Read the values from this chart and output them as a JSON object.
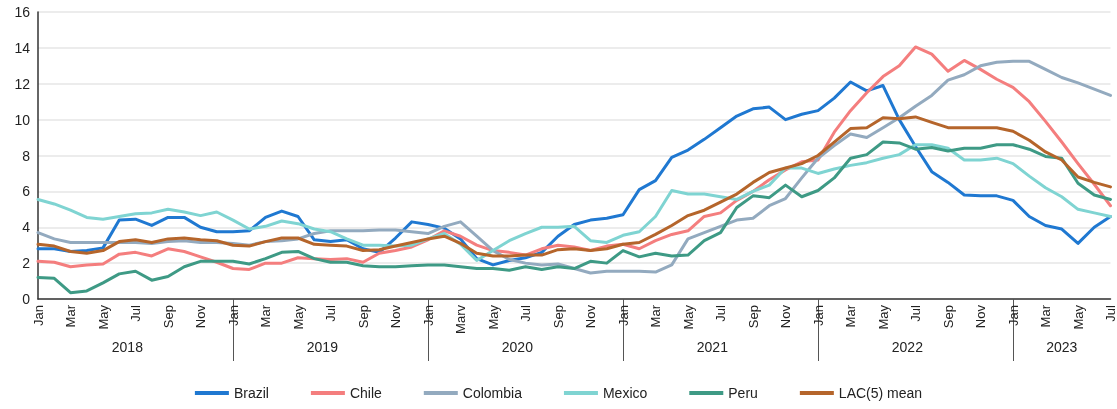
{
  "chart_data": {
    "type": "line",
    "categories": [
      "Jan",
      null,
      "Mar",
      null,
      "May",
      null,
      "Jul",
      null,
      "Sep",
      null,
      "Nov",
      null,
      "Jan",
      null,
      "Mar",
      null,
      "May",
      null,
      "Jul",
      null,
      "Sep",
      null,
      "Nov",
      null,
      "Jan",
      null,
      "Marv",
      null,
      "May",
      null,
      "Jul",
      null,
      "Sep",
      null,
      "Nov",
      null,
      "Jan",
      null,
      "Mar",
      null,
      "May",
      null,
      "Jul",
      null,
      "Sep",
      null,
      "Nov",
      null,
      "Jan",
      null,
      "Mar",
      null,
      "May",
      null,
      "Jul",
      null,
      "Sep",
      null,
      "Nov",
      null,
      "Jan",
      null,
      "Mar",
      null,
      "May",
      null,
      "Jul"
    ],
    "series": [
      {
        "name": "Brazil",
        "color": "#1f78d1",
        "values": [
          2.8,
          2.8,
          2.65,
          2.7,
          2.85,
          4.4,
          4.45,
          4.1,
          4.55,
          4.55,
          4.0,
          3.75,
          3.75,
          3.8,
          4.55,
          4.9,
          4.6,
          3.3,
          3.2,
          3.3,
          2.8,
          2.6,
          3.4,
          4.3,
          4.15,
          3.95,
          3.35,
          2.25,
          1.9,
          2.15,
          2.3,
          2.6,
          3.5,
          4.15,
          4.4,
          4.5,
          4.7,
          6.1,
          6.6,
          7.9,
          8.3,
          8.9,
          9.55,
          10.2,
          10.6,
          10.7,
          10.0,
          10.3,
          10.5,
          11.2,
          12.1,
          11.6,
          11.9,
          10.0,
          8.5,
          7.1,
          6.5,
          5.8,
          5.75,
          5.75,
          5.5,
          4.6,
          4.1,
          3.9,
          3.1,
          4.0,
          4.6
        ]
      },
      {
        "name": "Chile",
        "color": "#f47e7e",
        "values": [
          2.1,
          2.05,
          1.8,
          1.9,
          1.95,
          2.5,
          2.6,
          2.4,
          2.8,
          2.65,
          2.35,
          2.05,
          1.7,
          1.65,
          2.0,
          2.0,
          2.3,
          2.25,
          2.2,
          2.25,
          2.05,
          2.55,
          2.7,
          2.9,
          3.3,
          3.8,
          3.5,
          3.0,
          2.7,
          2.6,
          2.45,
          2.8,
          3.0,
          2.9,
          2.7,
          2.95,
          3.05,
          2.8,
          3.25,
          3.6,
          3.8,
          4.6,
          4.8,
          5.5,
          6.0,
          6.65,
          7.2,
          7.65,
          7.75,
          9.3,
          10.5,
          11.5,
          12.4,
          13.0,
          14.05,
          13.65,
          12.7,
          13.3,
          12.8,
          12.25,
          11.8,
          11.0,
          9.9,
          8.75,
          7.55,
          6.4,
          5.2
        ]
      },
      {
        "name": "Colombia",
        "color": "#93aabf",
        "values": [
          3.7,
          3.35,
          3.15,
          3.15,
          3.15,
          3.15,
          3.15,
          3.1,
          3.2,
          3.25,
          3.15,
          3.15,
          3.1,
          3.0,
          3.2,
          3.25,
          3.35,
          3.65,
          3.8,
          3.8,
          3.8,
          3.85,
          3.85,
          3.75,
          3.65,
          4.05,
          4.3,
          3.5,
          2.7,
          2.2,
          2.0,
          1.9,
          1.95,
          1.7,
          1.45,
          1.55,
          1.55,
          1.55,
          1.5,
          1.9,
          3.35,
          3.7,
          4.05,
          4.4,
          4.5,
          5.2,
          5.6,
          6.75,
          7.85,
          8.55,
          9.2,
          9.0,
          9.55,
          10.1,
          10.75,
          11.35,
          12.2,
          12.5,
          13.0,
          13.2,
          13.25,
          13.25,
          12.8,
          12.35,
          12.05,
          11.7,
          11.35
        ]
      },
      {
        "name": "Mexico",
        "color": "#7fd4d2",
        "values": [
          5.55,
          5.3,
          4.95,
          4.55,
          4.45,
          4.6,
          4.75,
          4.8,
          5.0,
          4.85,
          4.65,
          4.85,
          4.4,
          3.9,
          4.05,
          4.35,
          4.2,
          3.9,
          3.75,
          3.35,
          3.0,
          3.0,
          2.95,
          3.0,
          3.35,
          3.65,
          3.05,
          2.15,
          2.7,
          3.25,
          3.65,
          4.0,
          4.0,
          4.05,
          3.25,
          3.15,
          3.55,
          3.75,
          4.6,
          6.05,
          5.85,
          5.85,
          5.7,
          5.55,
          6.0,
          6.35,
          7.3,
          7.3,
          7.0,
          7.25,
          7.45,
          7.6,
          7.85,
          8.05,
          8.6,
          8.6,
          8.4,
          7.75,
          7.75,
          7.85,
          7.55,
          6.85,
          6.2,
          5.7,
          5.0,
          4.8,
          4.6
        ]
      },
      {
        "name": "Peru",
        "color": "#3e9a85",
        "values": [
          1.2,
          1.15,
          0.35,
          0.45,
          0.9,
          1.4,
          1.55,
          1.05,
          1.25,
          1.8,
          2.1,
          2.1,
          2.1,
          1.95,
          2.25,
          2.6,
          2.65,
          2.25,
          2.05,
          2.05,
          1.85,
          1.8,
          1.8,
          1.85,
          1.9,
          1.9,
          1.8,
          1.7,
          1.7,
          1.6,
          1.8,
          1.65,
          1.8,
          1.7,
          2.1,
          2.0,
          2.7,
          2.35,
          2.55,
          2.4,
          2.45,
          3.25,
          3.7,
          5.1,
          5.75,
          5.65,
          6.35,
          5.7,
          6.05,
          6.75,
          7.85,
          8.05,
          8.75,
          8.7,
          8.35,
          8.45,
          8.25,
          8.4,
          8.4,
          8.6,
          8.6,
          8.35,
          7.95,
          7.85,
          6.45,
          5.8,
          5.55
        ]
      },
      {
        "name": "LAC(5) mean",
        "color": "#b5652b",
        "values": [
          3.05,
          2.95,
          2.65,
          2.55,
          2.7,
          3.2,
          3.3,
          3.15,
          3.35,
          3.4,
          3.3,
          3.25,
          3.0,
          2.95,
          3.2,
          3.4,
          3.4,
          3.05,
          3.0,
          2.95,
          2.7,
          2.75,
          2.95,
          3.15,
          3.35,
          3.5,
          3.1,
          2.55,
          2.4,
          2.4,
          2.45,
          2.45,
          2.75,
          2.8,
          2.7,
          2.8,
          3.05,
          3.15,
          3.6,
          4.1,
          4.65,
          4.95,
          5.4,
          5.85,
          6.5,
          7.05,
          7.3,
          7.55,
          8.0,
          8.75,
          9.5,
          9.55,
          10.1,
          10.05,
          10.15,
          9.85,
          9.55,
          9.55,
          9.55,
          9.55,
          9.35,
          8.85,
          8.2,
          7.75,
          6.8,
          6.5,
          6.25
        ]
      }
    ],
    "annotations": [
      "2018",
      "2019",
      "2020",
      "2021",
      "2022",
      "2023"
    ],
    "ylim": [
      0,
      16
    ],
    "yticks": [
      0,
      2,
      4,
      6,
      8,
      10,
      12,
      14,
      16
    ],
    "grid": "y",
    "legend": "bottom",
    "marker": "none",
    "line_style": "solid"
  }
}
